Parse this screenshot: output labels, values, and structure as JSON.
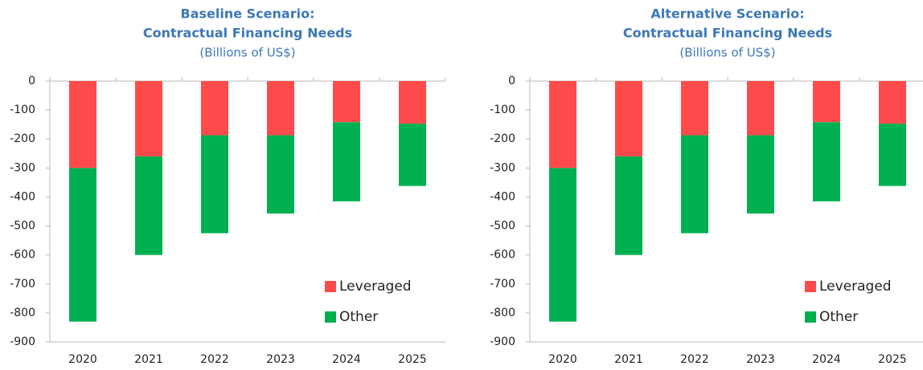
{
  "chart_data": [
    {
      "type": "bar",
      "stacked": true,
      "title": [
        "Baseline Scenario:",
        "Contractual Financing Needs"
      ],
      "subtitle": "(Billions of US$)",
      "categories": [
        "2020",
        "2021",
        "2022",
        "2023",
        "2024",
        "2025"
      ],
      "series": [
        {
          "name": "Leveraged",
          "color": "#ff4b4b",
          "values": [
            -300,
            -260,
            -187,
            -187,
            -142,
            -147
          ]
        },
        {
          "name": "Other",
          "color": "#00b050",
          "values": [
            -530,
            -340,
            -338,
            -270,
            -273,
            -215
          ]
        }
      ],
      "ylim": [
        -900,
        0
      ],
      "yticks": [
        0,
        -100,
        -200,
        -300,
        -400,
        -500,
        -600,
        -700,
        -800,
        -900
      ],
      "legend": "lower right"
    },
    {
      "type": "bar",
      "stacked": true,
      "title": [
        "Alternative Scenario:",
        "Contractual Financing Needs"
      ],
      "subtitle": "(Billions of US$)",
      "categories": [
        "2020",
        "2021",
        "2022",
        "2023",
        "2024",
        "2025"
      ],
      "series": [
        {
          "name": "Leveraged",
          "color": "#ff4b4b",
          "values": [
            -300,
            -260,
            -187,
            -187,
            -142,
            -147
          ]
        },
        {
          "name": "Other",
          "color": "#00b050",
          "values": [
            -530,
            -340,
            -338,
            -270,
            -273,
            -215
          ]
        }
      ],
      "ylim": [
        -900,
        0
      ],
      "yticks": [
        0,
        -100,
        -200,
        -300,
        -400,
        -500,
        -600,
        -700,
        -800,
        -900
      ],
      "legend": "lower right"
    }
  ]
}
